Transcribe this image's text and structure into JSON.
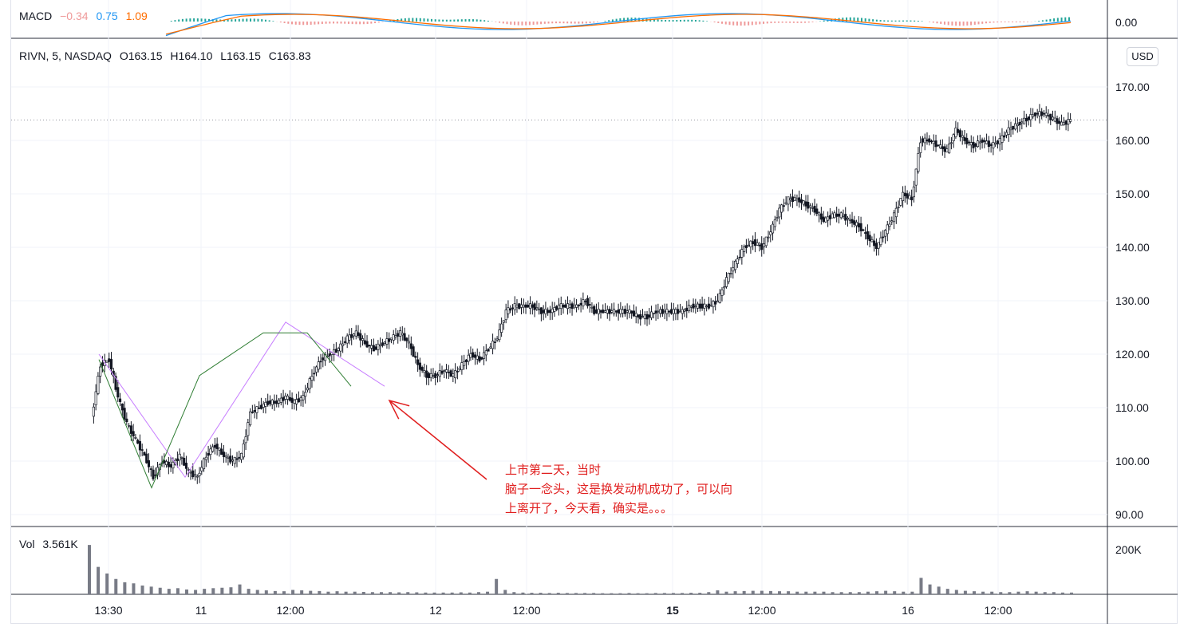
{
  "macd": {
    "name": "MACD",
    "hist_value": "−0.34",
    "macd_value": "0.75",
    "signal_value": "1.09",
    "axis_label": "0.00",
    "colors": {
      "hist_neg": "#ef9a9a",
      "macd": "#2196f3",
      "signal": "#ff6d00"
    }
  },
  "legend": {
    "symbol": "RIVN, 5, NASDAQ",
    "open": "O163.15",
    "high": "H164.10",
    "low": "L163.15",
    "close": "C163.83"
  },
  "currency_button": "USD",
  "volume": {
    "name": "Vol",
    "value": "3.561K",
    "axis_label": "200K"
  },
  "annotation": {
    "line1": "上市第二天，当时",
    "line2": "脑子一念头，这是换发动机成功了，可以向",
    "line3": "上离开了，今天看，确实是。。。",
    "color": "#e01e1e"
  },
  "chart_data": {
    "type": "candlestick",
    "symbol": "RIVN",
    "interval": "5",
    "exchange": "NASDAQ",
    "currency": "USD",
    "y_ticks": [
      90,
      100,
      110,
      120,
      130,
      140,
      150,
      160,
      170
    ],
    "ylim": [
      88,
      172
    ],
    "x_tick_labels": [
      "13:30",
      "11",
      "12:00",
      "12",
      "12:00",
      "15",
      "12:00",
      "16",
      "12:00"
    ],
    "last_price": 163.83,
    "price_path": [
      [
        0,
        108
      ],
      [
        1,
        118
      ],
      [
        2,
        119
      ],
      [
        3,
        112
      ],
      [
        4,
        107
      ],
      [
        5,
        104
      ],
      [
        6,
        101
      ],
      [
        7,
        97
      ],
      [
        8,
        100
      ],
      [
        9,
        99
      ],
      [
        10,
        101
      ],
      [
        11,
        98
      ],
      [
        12,
        97
      ],
      [
        13,
        101
      ],
      [
        14,
        103
      ],
      [
        15,
        101
      ],
      [
        16,
        100
      ],
      [
        17,
        101
      ],
      [
        18,
        109
      ],
      [
        19,
        110
      ],
      [
        20,
        111
      ],
      [
        21,
        111
      ],
      [
        22,
        112
      ],
      [
        23,
        111
      ],
      [
        24,
        112
      ],
      [
        25,
        116
      ],
      [
        26,
        119
      ],
      [
        27,
        120
      ],
      [
        28,
        121
      ],
      [
        29,
        123
      ],
      [
        30,
        124
      ],
      [
        31,
        122
      ],
      [
        32,
        121
      ],
      [
        33,
        122
      ],
      [
        34,
        123
      ],
      [
        35,
        124
      ],
      [
        36,
        122
      ],
      [
        37,
        118
      ],
      [
        38,
        116
      ],
      [
        39,
        116
      ],
      [
        40,
        117
      ],
      [
        41,
        116
      ],
      [
        42,
        118
      ],
      [
        43,
        120
      ],
      [
        44,
        119
      ],
      [
        45,
        121
      ],
      [
        46,
        123
      ],
      [
        47,
        128
      ],
      [
        48,
        129
      ],
      [
        49,
        129
      ],
      [
        50,
        129
      ],
      [
        51,
        128
      ],
      [
        52,
        128
      ],
      [
        53,
        129
      ],
      [
        54,
        129
      ],
      [
        55,
        129
      ],
      [
        56,
        130
      ],
      [
        57,
        128
      ],
      [
        58,
        128
      ],
      [
        59,
        128
      ],
      [
        60,
        128
      ],
      [
        61,
        128
      ],
      [
        62,
        127
      ],
      [
        63,
        127
      ],
      [
        64,
        128
      ],
      [
        65,
        128
      ],
      [
        66,
        128
      ],
      [
        67,
        128
      ],
      [
        68,
        129
      ],
      [
        69,
        129
      ],
      [
        70,
        129
      ],
      [
        71,
        130
      ],
      [
        72,
        134
      ],
      [
        73,
        137
      ],
      [
        74,
        140
      ],
      [
        75,
        141
      ],
      [
        76,
        140
      ],
      [
        77,
        143
      ],
      [
        78,
        147
      ],
      [
        79,
        149
      ],
      [
        80,
        149
      ],
      [
        81,
        148
      ],
      [
        82,
        147
      ],
      [
        83,
        145
      ],
      [
        84,
        146
      ],
      [
        85,
        146
      ],
      [
        86,
        145
      ],
      [
        87,
        144
      ],
      [
        88,
        142
      ],
      [
        89,
        140
      ],
      [
        90,
        143
      ],
      [
        91,
        146
      ],
      [
        92,
        150
      ],
      [
        93,
        149
      ],
      [
        94,
        160
      ],
      [
        95,
        160
      ],
      [
        96,
        159
      ],
      [
        97,
        158
      ],
      [
        98,
        162
      ],
      [
        99,
        160
      ],
      [
        100,
        159
      ],
      [
        101,
        160
      ],
      [
        102,
        159
      ],
      [
        103,
        160
      ],
      [
        104,
        162
      ],
      [
        105,
        163
      ],
      [
        106,
        164
      ],
      [
        107,
        165
      ],
      [
        108,
        165
      ],
      [
        109,
        164
      ],
      [
        110,
        163
      ],
      [
        111,
        163.83
      ]
    ],
    "volume": [
      225,
      125,
      95,
      70,
      55,
      50,
      40,
      35,
      30,
      25,
      28,
      22,
      20,
      25,
      28,
      30,
      32,
      45,
      25,
      20,
      18,
      15,
      14,
      20,
      18,
      16,
      15,
      12,
      14,
      12,
      12,
      11,
      10,
      10,
      10,
      9,
      10,
      9,
      8,
      8,
      8,
      8,
      9,
      8,
      10,
      12,
      70,
      20,
      10,
      8,
      7,
      7,
      6,
      7,
      6,
      6,
      6,
      6,
      5,
      5,
      5,
      6,
      5,
      5,
      6,
      6,
      6,
      6,
      7,
      7,
      10,
      18,
      12,
      14,
      15,
      16,
      16,
      15,
      14,
      14,
      12,
      12,
      12,
      12,
      10,
      10,
      10,
      10,
      12,
      14,
      16,
      14,
      12,
      12,
      75,
      45,
      35,
      25,
      20,
      16,
      14,
      12,
      12,
      10,
      10,
      12,
      14,
      12,
      10,
      10,
      8,
      8
    ],
    "trendlines": [
      {
        "color": "#c77dff",
        "points": [
          [
            124,
            120
          ],
          [
            232,
            97
          ],
          [
            358,
            126
          ],
          [
            482,
            114
          ]
        ]
      },
      {
        "color": "#2e7d32",
        "points": [
          [
            124,
            119
          ],
          [
            190,
            95
          ],
          [
            250,
            116
          ],
          [
            330,
            124
          ],
          [
            385,
            124
          ],
          [
            440,
            114
          ]
        ]
      }
    ],
    "arrow": {
      "color": "#e01e1e",
      "from": [
        610,
        601
      ],
      "to": [
        488,
        502
      ]
    }
  }
}
